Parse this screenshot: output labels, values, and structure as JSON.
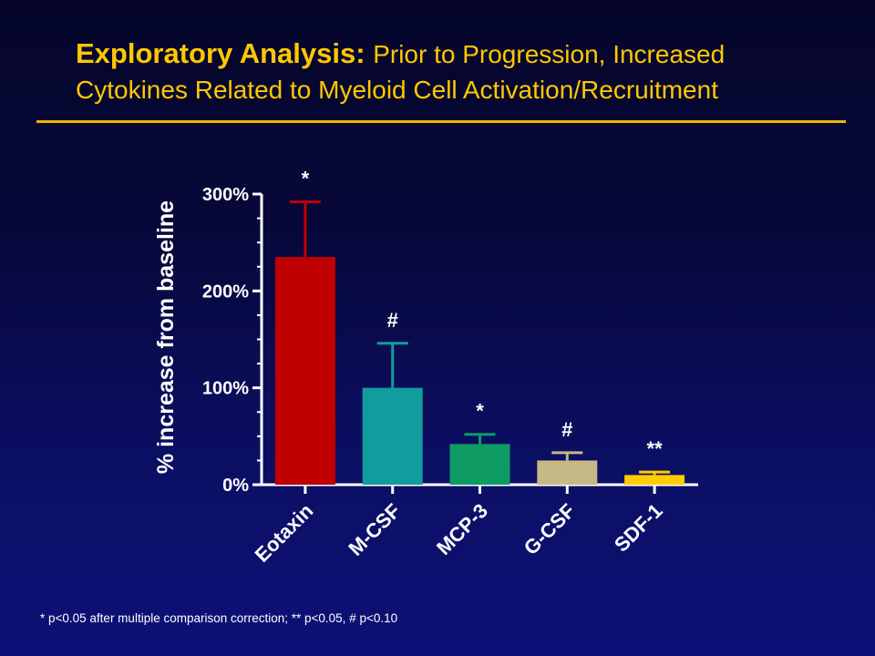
{
  "title": {
    "bold": "Exploratory Analysis:",
    "line1_rest": "Prior to Progression, Increased",
    "line2": "Cytokines Related to Myeloid Cell Activation/Recruitment"
  },
  "footnote": "* p<0.05 after multiple comparison correction; ** p<0.05, # p<0.10",
  "colors": {
    "title": "#ffc800",
    "rule": "#f3b400",
    "axis": "#ffffff"
  },
  "chart_data": {
    "type": "bar",
    "categories": [
      "Eotaxin",
      "M-CSF",
      "MCP-3",
      "G-CSF",
      "SDF-1"
    ],
    "values": [
      235,
      100,
      42,
      25,
      10
    ],
    "error_upper": [
      292,
      146,
      52,
      33,
      13
    ],
    "significance": [
      "*",
      "#",
      "*",
      "#",
      "**"
    ],
    "colors": [
      "#c00000",
      "#139c9e",
      "#0e9b64",
      "#c6b987",
      "#ffcc00"
    ],
    "ylabel": "% increase from baseline",
    "yticks": [
      0,
      100,
      200,
      300
    ],
    "ytick_labels": [
      "0%",
      "100%",
      "200%",
      "300%"
    ],
    "ylim": [
      0,
      300
    ],
    "grid": false,
    "legend": "none"
  }
}
